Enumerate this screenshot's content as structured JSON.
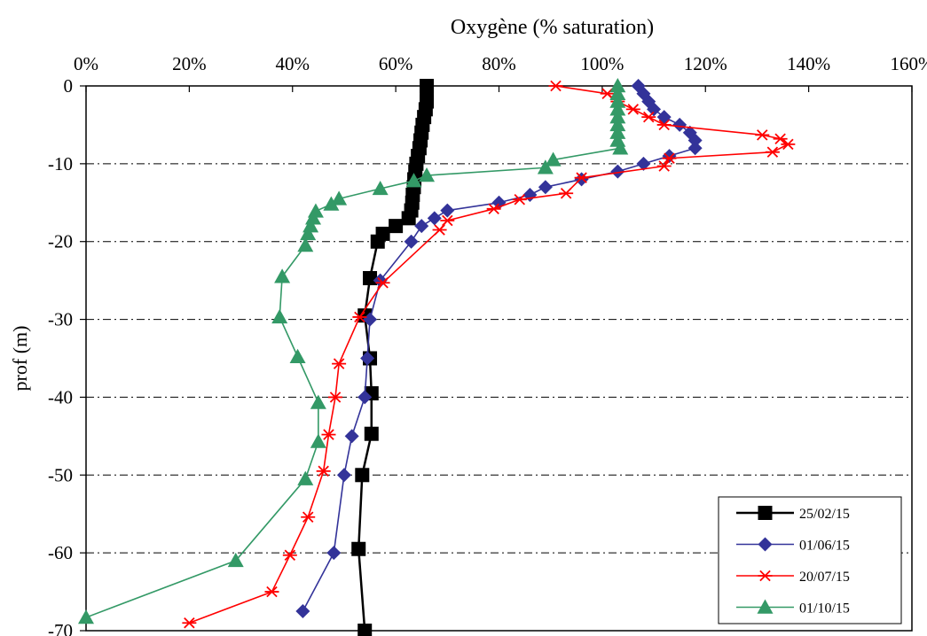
{
  "chart_data": {
    "type": "line",
    "title": "Oxygène (% saturation)",
    "xlabel": "",
    "ylabel": "prof (m)",
    "xlim": [
      0,
      160
    ],
    "ylim": [
      -70,
      0
    ],
    "x_axis_position": "top",
    "x_ticks": [
      "0%",
      "20%",
      "40%",
      "60%",
      "80%",
      "100%",
      "120%",
      "140%",
      "160%"
    ],
    "y_ticks": [
      "0",
      "-10",
      "-20",
      "-30",
      "-40",
      "-50",
      "-60",
      "-70"
    ],
    "grid": "horizontal dash-dot",
    "legend_position": "bottom-right",
    "series": [
      {
        "name": "25/02/15",
        "color": "#000000",
        "marker": "square",
        "points": [
          [
            66,
            0
          ],
          [
            66,
            -1
          ],
          [
            66,
            -2
          ],
          [
            65.8,
            -3
          ],
          [
            65.5,
            -4
          ],
          [
            65.2,
            -5
          ],
          [
            65,
            -6
          ],
          [
            64.8,
            -7
          ],
          [
            64.6,
            -8
          ],
          [
            64.3,
            -9
          ],
          [
            64,
            -10
          ],
          [
            63.8,
            -11
          ],
          [
            63.6,
            -12
          ],
          [
            63.5,
            -13
          ],
          [
            63.3,
            -14
          ],
          [
            63.2,
            -15
          ],
          [
            63,
            -16
          ],
          [
            62.5,
            -17
          ],
          [
            60,
            -18
          ],
          [
            57.5,
            -19
          ],
          [
            56.5,
            -20
          ],
          [
            55,
            -24.7
          ],
          [
            54,
            -29.5
          ],
          [
            55,
            -35
          ],
          [
            55.3,
            -39.5
          ],
          [
            55.3,
            -44.7
          ],
          [
            53.5,
            -50
          ],
          [
            52.8,
            -59.5
          ],
          [
            54,
            -70
          ]
        ]
      },
      {
        "name": "01/06/15",
        "color": "#333399",
        "marker": "diamond",
        "points": [
          [
            107,
            0
          ],
          [
            108,
            -1
          ],
          [
            109,
            -2
          ],
          [
            110,
            -3
          ],
          [
            112,
            -4
          ],
          [
            115,
            -5
          ],
          [
            117,
            -6
          ],
          [
            118,
            -7
          ],
          [
            118,
            -8
          ],
          [
            113,
            -9
          ],
          [
            108,
            -10
          ],
          [
            103,
            -11
          ],
          [
            96,
            -12
          ],
          [
            89,
            -13
          ],
          [
            86,
            -14
          ],
          [
            80,
            -15
          ],
          [
            70,
            -16
          ],
          [
            67.5,
            -17
          ],
          [
            65,
            -18
          ],
          [
            63,
            -20
          ],
          [
            57,
            -25
          ],
          [
            55,
            -30
          ],
          [
            54.5,
            -35
          ],
          [
            54,
            -40
          ],
          [
            51.5,
            -45
          ],
          [
            50,
            -50
          ],
          [
            48,
            -60
          ],
          [
            42,
            -67.5
          ]
        ]
      },
      {
        "name": "20/07/15",
        "color": "#ff0000",
        "marker": "star",
        "points": [
          [
            91,
            0
          ],
          [
            101,
            -1
          ],
          [
            103,
            -2
          ],
          [
            106,
            -3
          ],
          [
            109,
            -4
          ],
          [
            112,
            -5
          ],
          [
            131,
            -6.3
          ],
          [
            134.5,
            -6.8
          ],
          [
            136,
            -7.5
          ],
          [
            133,
            -8.5
          ],
          [
            113,
            -9.3
          ],
          [
            112,
            -10.3
          ],
          [
            96,
            -11.8
          ],
          [
            93,
            -13.8
          ],
          [
            84,
            -14.6
          ],
          [
            79,
            -15.8
          ],
          [
            70,
            -17.3
          ],
          [
            68.5,
            -18.5
          ],
          [
            57.5,
            -25.3
          ],
          [
            53,
            -29.7
          ],
          [
            49,
            -35.7
          ],
          [
            48.3,
            -40
          ],
          [
            47,
            -44.8
          ],
          [
            46,
            -49.5
          ],
          [
            43,
            -55.4
          ],
          [
            39.5,
            -60.3
          ],
          [
            36,
            -65
          ],
          [
            20,
            -69
          ]
        ]
      },
      {
        "name": "01/10/15",
        "color": "#339966",
        "marker": "triangle",
        "points": [
          [
            103,
            0
          ],
          [
            103,
            -1
          ],
          [
            103,
            -2
          ],
          [
            103,
            -3
          ],
          [
            103,
            -4
          ],
          [
            103,
            -5
          ],
          [
            103,
            -6
          ],
          [
            103,
            -7
          ],
          [
            103.5,
            -8
          ],
          [
            90.5,
            -9.5
          ],
          [
            89,
            -10.5
          ],
          [
            66,
            -11.5
          ],
          [
            63.5,
            -12.2
          ],
          [
            57,
            -13.2
          ],
          [
            49,
            -14.5
          ],
          [
            47.5,
            -15.2
          ],
          [
            44.5,
            -16.1
          ],
          [
            44,
            -17
          ],
          [
            43.5,
            -18
          ],
          [
            43,
            -19
          ],
          [
            42.5,
            -20.5
          ],
          [
            38,
            -24.5
          ],
          [
            37.5,
            -29.7
          ],
          [
            41,
            -34.8
          ],
          [
            45,
            -40.7
          ],
          [
            45,
            -45.7
          ],
          [
            42.5,
            -50.5
          ],
          [
            29,
            -61
          ],
          [
            0,
            -68.3
          ]
        ]
      }
    ]
  }
}
